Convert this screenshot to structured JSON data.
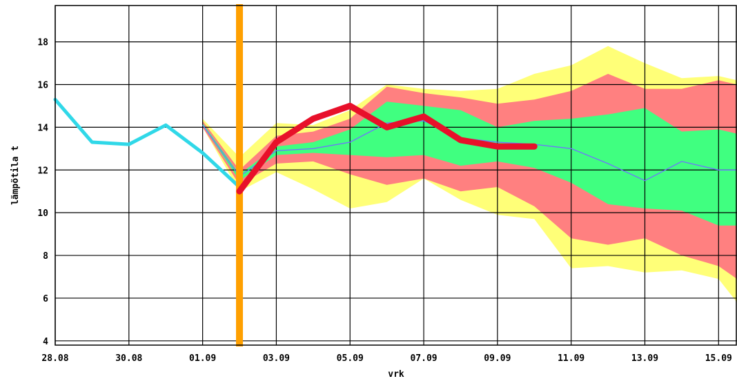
{
  "chart_data": {
    "type": "line",
    "xlabel": "vrk",
    "ylabel": "lämpötila t",
    "xlim": [
      0,
      18.5
    ],
    "ylim": [
      3.8,
      19.7
    ],
    "x_ticks": [
      {
        "x": 0,
        "label": "28.08"
      },
      {
        "x": 2,
        "label": "30.08"
      },
      {
        "x": 4,
        "label": "01.09"
      },
      {
        "x": 6,
        "label": "03.09"
      },
      {
        "x": 8,
        "label": "05.09"
      },
      {
        "x": 10,
        "label": "07.09"
      },
      {
        "x": 12,
        "label": "09.09"
      },
      {
        "x": 14,
        "label": "11.09"
      },
      {
        "x": 16,
        "label": "13.09"
      },
      {
        "x": 18,
        "label": "15.09"
      }
    ],
    "y_ticks": [
      4,
      6,
      8,
      10,
      12,
      14,
      16,
      18
    ],
    "grid": true,
    "forecast_start_x": 5,
    "colors": {
      "band_outer": "#ffff78",
      "band_middle": "#ff8080",
      "band_inner": "#40ff80",
      "median": "#7070ff",
      "observed": "#30d8e8",
      "actual": "#e8102a",
      "marker": "#ffa000"
    },
    "bands": [
      {
        "name": "outer",
        "x": [
          4,
          5,
          6,
          7,
          8,
          9,
          10,
          11,
          12,
          13,
          14,
          15,
          16,
          17,
          18,
          18.5
        ],
        "upper": [
          14.4,
          12.6,
          14.2,
          14.1,
          14.8,
          16.0,
          15.8,
          15.7,
          15.8,
          16.5,
          16.9,
          17.8,
          17.0,
          16.3,
          16.4,
          16.2
        ],
        "lower": [
          14.0,
          11.0,
          11.9,
          11.1,
          10.2,
          10.5,
          11.6,
          10.6,
          9.9,
          9.7,
          7.4,
          7.5,
          7.2,
          7.3,
          6.9,
          5.8
        ]
      },
      {
        "name": "middle",
        "x": [
          4,
          5,
          6,
          7,
          8,
          9,
          10,
          11,
          12,
          13,
          14,
          15,
          16,
          17,
          18,
          18.5
        ],
        "upper": [
          14.3,
          12.0,
          13.6,
          13.8,
          14.4,
          15.9,
          15.6,
          15.4,
          15.1,
          15.3,
          15.7,
          16.5,
          15.8,
          15.8,
          16.2,
          16.0
        ],
        "lower": [
          14.0,
          11.3,
          12.3,
          12.4,
          11.8,
          11.3,
          11.6,
          11.0,
          11.2,
          10.3,
          8.8,
          8.5,
          8.8,
          8.0,
          7.5,
          6.9
        ]
      },
      {
        "name": "inner",
        "x": [
          4,
          5,
          6,
          7,
          8,
          9,
          10,
          11,
          12,
          13,
          14,
          15,
          16,
          17,
          18,
          18.5
        ],
        "upper": [
          14.2,
          11.8,
          13.1,
          13.3,
          13.9,
          15.2,
          15.0,
          14.8,
          14.0,
          14.3,
          14.4,
          14.6,
          14.9,
          13.8,
          13.9,
          13.7
        ],
        "lower": [
          14.1,
          11.5,
          12.7,
          12.8,
          12.7,
          12.6,
          12.7,
          12.2,
          12.4,
          12.1,
          11.4,
          10.4,
          10.2,
          10.1,
          9.4,
          9.4
        ]
      }
    ],
    "series": [
      {
        "role": "median",
        "x": [
          4,
          5,
          6,
          7,
          8,
          9,
          10,
          11,
          12,
          13,
          14,
          15,
          16,
          17,
          18,
          18.5
        ],
        "y": [
          14.1,
          11.7,
          12.9,
          13.0,
          13.3,
          14.2,
          14.3,
          13.5,
          13.3,
          13.2,
          13.0,
          12.3,
          11.5,
          12.4,
          12.0,
          12.0
        ]
      },
      {
        "role": "observed",
        "x": [
          0,
          1,
          2,
          3,
          4,
          5
        ],
        "y": [
          15.3,
          13.3,
          13.2,
          14.1,
          12.8,
          11.2
        ]
      },
      {
        "role": "actual",
        "x": [
          5,
          6,
          7,
          8,
          9,
          10,
          11,
          12,
          13
        ],
        "y": [
          11.0,
          13.3,
          14.4,
          15.0,
          14.0,
          14.5,
          13.4,
          13.1,
          13.1
        ]
      }
    ]
  }
}
